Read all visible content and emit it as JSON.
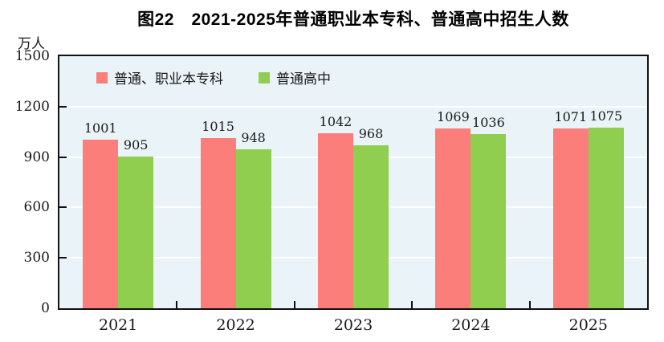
{
  "title": "图22　2021-2025年普通职业本专科、普通高中招生人数",
  "unit_label": "万人",
  "legend": {
    "items": [
      {
        "label": "普通、职业本专科",
        "color": "#FB7E7B"
      },
      {
        "label": "普通高中",
        "color": "#90CE50"
      }
    ]
  },
  "colors": {
    "plot_background": "#EAF3F7",
    "gridline": "#FFFFFF",
    "axis_frame": "#111111",
    "text": "#1A1A1A"
  },
  "chart_data": {
    "type": "bar",
    "title": "图22　2021-2025年普通职业本专科、普通高中招生人数",
    "categories": [
      "2021",
      "2022",
      "2023",
      "2024",
      "2025"
    ],
    "series": [
      {
        "name": "普通、职业本专科",
        "color": "#FB7E7B",
        "values": [
          1001,
          1015,
          1042,
          1069,
          1071
        ]
      },
      {
        "name": "普通高中",
        "color": "#90CE50",
        "values": [
          905,
          948,
          968,
          1036,
          1075
        ]
      }
    ],
    "xlabel": "",
    "ylabel": "万人",
    "ylim": [
      0,
      1500
    ],
    "yticks": [
      0,
      300,
      600,
      900,
      1200,
      1500
    ],
    "grid": true,
    "legend_position": "top-left-inside",
    "value_labels": true
  }
}
